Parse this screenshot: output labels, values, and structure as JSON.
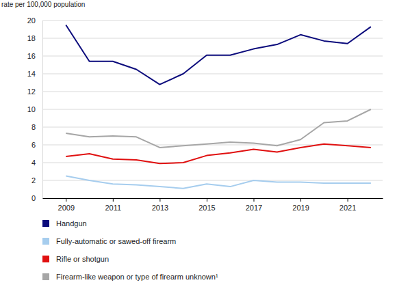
{
  "chart_data": {
    "type": "line",
    "y_label": "rate per 100,000 population",
    "x": [
      2009,
      2010,
      2011,
      2012,
      2013,
      2014,
      2015,
      2016,
      2017,
      2018,
      2019,
      2020,
      2021,
      2022
    ],
    "series": [
      {
        "name": "Handgun",
        "color": "#0b0b7c",
        "values": [
          19.5,
          15.4,
          15.4,
          14.5,
          12.8,
          14.0,
          16.1,
          16.1,
          16.8,
          17.3,
          18.4,
          17.7,
          17.4,
          19.3
        ]
      },
      {
        "name": "Fully-automatic or sawed-off firearm",
        "color": "#a6cdee",
        "values": [
          2.5,
          2.0,
          1.6,
          1.5,
          1.3,
          1.1,
          1.6,
          1.3,
          2.0,
          1.8,
          1.8,
          1.7,
          1.7,
          1.7
        ]
      },
      {
        "name": "Rifle or shotgun",
        "color": "#e01010",
        "values": [
          4.7,
          5.0,
          4.4,
          4.3,
          3.9,
          4.0,
          4.8,
          5.1,
          5.5,
          5.2,
          5.7,
          6.1,
          5.9,
          5.7
        ]
      },
      {
        "name": "Firearm-like weapon or type of firearm unknown¹",
        "color": "#a6a6a6",
        "values": [
          7.3,
          6.9,
          7.0,
          6.9,
          5.7,
          5.9,
          6.1,
          6.3,
          6.2,
          5.9,
          6.6,
          8.5,
          8.7,
          10.0
        ]
      }
    ],
    "xlim": [
      2008,
      2022.5
    ],
    "xticks": [
      2009,
      2011,
      2013,
      2015,
      2017,
      2019,
      2021
    ],
    "ylim": [
      0,
      20
    ],
    "yticks": [
      0,
      2,
      4,
      6,
      8,
      10,
      12,
      14,
      16,
      18,
      20
    ],
    "grid": true,
    "legend": "bottom"
  }
}
